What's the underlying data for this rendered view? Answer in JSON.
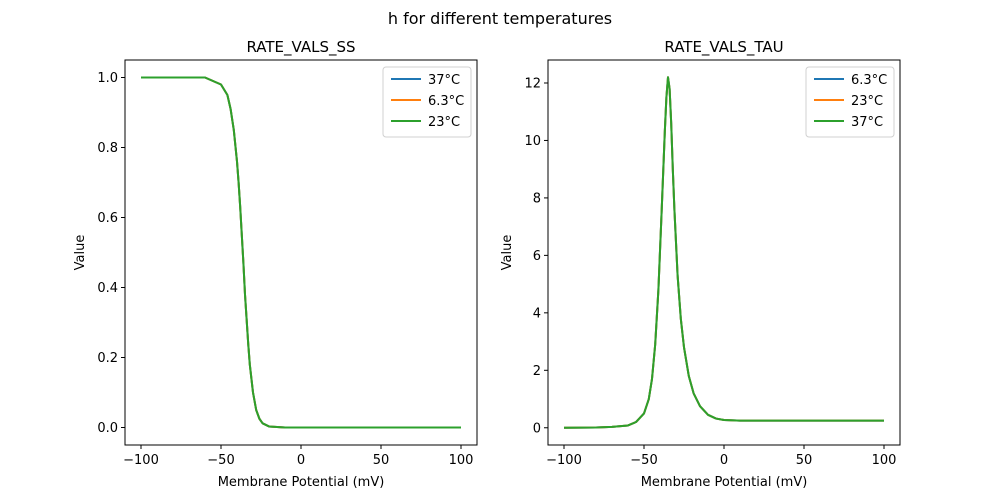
{
  "figure": {
    "suptitle": "h for different temperatures"
  },
  "chart_data": [
    {
      "type": "line",
      "title": "RATE_VALS_SS",
      "xlabel": "Membrane Potential (mV)",
      "ylabel": "Value",
      "xlim": [
        -110,
        110
      ],
      "ylim": [
        -0.05,
        1.05
      ],
      "xticks": [
        -100,
        -50,
        0,
        50,
        100
      ],
      "xtick_labels": [
        "−100",
        "−50",
        "0",
        "50",
        "100"
      ],
      "yticks": [
        0.0,
        0.2,
        0.4,
        0.6,
        0.8,
        1.0
      ],
      "ytick_labels": [
        "0.0",
        "0.2",
        "0.4",
        "0.6",
        "0.8",
        "1.0"
      ],
      "grid": false,
      "legend_position": "top-right",
      "x": [
        -100,
        -80,
        -60,
        -50,
        -46,
        -44,
        -42,
        -40,
        -39,
        -38,
        -37,
        -36,
        -35,
        -34,
        -33,
        -32,
        -31,
        -30,
        -28,
        -26,
        -24,
        -20,
        -10,
        0,
        25,
        50,
        75,
        100
      ],
      "series": [
        {
          "name": "37°C",
          "color": "#1f77b4",
          "values": [
            1.0,
            1.0,
            1.0,
            0.98,
            0.95,
            0.91,
            0.85,
            0.76,
            0.7,
            0.63,
            0.55,
            0.47,
            0.38,
            0.31,
            0.24,
            0.18,
            0.14,
            0.1,
            0.05,
            0.025,
            0.012,
            0.003,
            0.0,
            0.0,
            0.0,
            0.0,
            0.0,
            0.0
          ]
        },
        {
          "name": "6.3°C",
          "color": "#ff7f0e",
          "values": [
            1.0,
            1.0,
            1.0,
            0.98,
            0.95,
            0.91,
            0.85,
            0.76,
            0.7,
            0.63,
            0.55,
            0.47,
            0.38,
            0.31,
            0.24,
            0.18,
            0.14,
            0.1,
            0.05,
            0.025,
            0.012,
            0.003,
            0.0,
            0.0,
            0.0,
            0.0,
            0.0,
            0.0
          ]
        },
        {
          "name": "23°C",
          "color": "#2ca02c",
          "values": [
            1.0,
            1.0,
            1.0,
            0.98,
            0.95,
            0.91,
            0.85,
            0.76,
            0.7,
            0.63,
            0.55,
            0.47,
            0.38,
            0.31,
            0.24,
            0.18,
            0.14,
            0.1,
            0.05,
            0.025,
            0.012,
            0.003,
            0.0,
            0.0,
            0.0,
            0.0,
            0.0,
            0.0
          ]
        }
      ]
    },
    {
      "type": "line",
      "title": "RATE_VALS_TAU",
      "xlabel": "Membrane Potential (mV)",
      "ylabel": "Value",
      "xlim": [
        -110,
        110
      ],
      "ylim": [
        -0.6,
        12.8
      ],
      "xticks": [
        -100,
        -50,
        0,
        50,
        100
      ],
      "xtick_labels": [
        "−100",
        "−50",
        "0",
        "50",
        "100"
      ],
      "yticks": [
        0,
        2,
        4,
        6,
        8,
        10,
        12
      ],
      "ytick_labels": [
        "0",
        "2",
        "4",
        "6",
        "8",
        "10",
        "12"
      ],
      "grid": false,
      "legend_position": "top-right",
      "x": [
        -100,
        -80,
        -70,
        -60,
        -55,
        -50,
        -47,
        -45,
        -43,
        -41,
        -39,
        -37,
        -36,
        -35,
        -34,
        -33,
        -32,
        -31,
        -29,
        -27,
        -25,
        -22,
        -19,
        -15,
        -10,
        -5,
        0,
        10,
        25,
        50,
        75,
        100
      ],
      "series": [
        {
          "name": "6.3°C",
          "color": "#1f77b4",
          "values": [
            0.0,
            0.01,
            0.03,
            0.08,
            0.2,
            0.5,
            1.0,
            1.7,
            2.9,
            4.8,
            7.5,
            10.3,
            11.5,
            12.2,
            11.8,
            10.6,
            9.0,
            7.6,
            5.3,
            3.8,
            2.8,
            1.8,
            1.2,
            0.75,
            0.45,
            0.32,
            0.27,
            0.25,
            0.25,
            0.25,
            0.25,
            0.25
          ]
        },
        {
          "name": "23°C",
          "color": "#ff7f0e",
          "values": [
            0.0,
            0.01,
            0.03,
            0.08,
            0.2,
            0.5,
            1.0,
            1.7,
            2.9,
            4.8,
            7.5,
            10.3,
            11.5,
            12.2,
            11.8,
            10.6,
            9.0,
            7.6,
            5.3,
            3.8,
            2.8,
            1.8,
            1.2,
            0.75,
            0.45,
            0.32,
            0.27,
            0.25,
            0.25,
            0.25,
            0.25,
            0.25
          ]
        },
        {
          "name": "37°C",
          "color": "#2ca02c",
          "values": [
            0.0,
            0.01,
            0.03,
            0.08,
            0.2,
            0.5,
            1.0,
            1.7,
            2.9,
            4.8,
            7.5,
            10.3,
            11.5,
            12.2,
            11.8,
            10.6,
            9.0,
            7.6,
            5.3,
            3.8,
            2.8,
            1.8,
            1.2,
            0.75,
            0.45,
            0.32,
            0.27,
            0.25,
            0.25,
            0.25,
            0.25,
            0.25
          ]
        }
      ]
    }
  ]
}
